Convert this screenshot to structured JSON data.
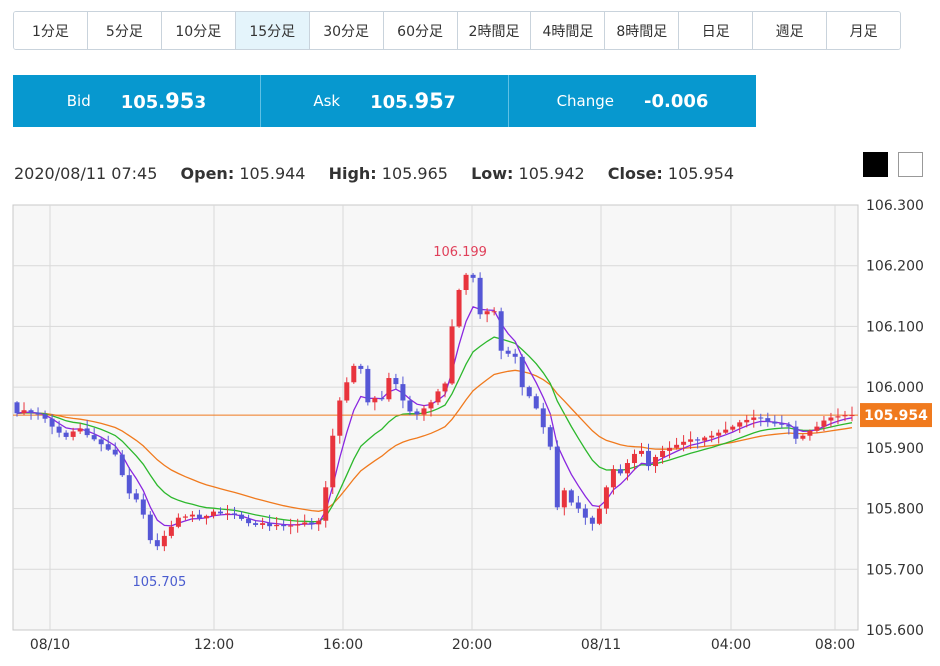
{
  "timeframes": [
    {
      "label": "1分足",
      "active": false
    },
    {
      "label": "5分足",
      "active": false
    },
    {
      "label": "10分足",
      "active": false
    },
    {
      "label": "15分足",
      "active": true
    },
    {
      "label": "30分足",
      "active": false
    },
    {
      "label": "60分足",
      "active": false
    },
    {
      "label": "2時間足",
      "active": false
    },
    {
      "label": "4時間足",
      "active": false
    },
    {
      "label": "8時間足",
      "active": false
    },
    {
      "label": "日足",
      "active": false
    },
    {
      "label": "週足",
      "active": false
    },
    {
      "label": "月足",
      "active": false
    }
  ],
  "quote": {
    "bid_label": "Bid",
    "bid_main": "105.",
    "bid_big": "95",
    "bid_small": "3",
    "ask_label": "Ask",
    "ask_main": "105.",
    "ask_big": "95",
    "ask_small": "7",
    "change_label": "Change",
    "change_value": "-0.006",
    "color": "#0798cf"
  },
  "ohlc": {
    "datetime": "2020/08/11 07:45",
    "open_label": "Open:",
    "open": "105.944",
    "high_label": "High:",
    "high": "105.965",
    "low_label": "Low:",
    "low": "105.942",
    "close_label": "Close:",
    "close": "105.954"
  },
  "theme_buttons": [
    "dark",
    "light"
  ],
  "chart_data": {
    "type": "candlestick",
    "ylim": [
      105.6,
      106.3
    ],
    "yticks": [
      "106.300",
      "106.200",
      "106.100",
      "106.000",
      "105.900",
      "105.800",
      "105.700",
      "105.600"
    ],
    "xticks": [
      "08/10",
      "12:00",
      "16:00",
      "20:00",
      "08/11",
      "04:00",
      "08:00"
    ],
    "current_price": 105.954,
    "current_price_label": "105.954",
    "max_label": "106.199",
    "min_label": "105.705",
    "colors": {
      "up": "#e8343d",
      "down": "#5557d6",
      "ma_short": "#8a27e0",
      "ma_mid": "#2db82d",
      "ma_long": "#f07a1e",
      "price_line": "#f07a1e"
    },
    "closes": [
      105.957,
      105.962,
      105.958,
      105.955,
      105.948,
      105.935,
      105.925,
      105.918,
      105.927,
      105.932,
      105.921,
      105.914,
      105.906,
      105.897,
      105.889,
      105.855,
      105.825,
      105.815,
      105.79,
      105.748,
      105.738,
      105.755,
      105.77,
      105.785,
      105.787,
      105.79,
      105.784,
      105.788,
      105.795,
      105.792,
      105.792,
      105.79,
      105.783,
      105.776,
      105.773,
      105.776,
      105.771,
      105.773,
      105.771,
      105.772,
      105.774,
      105.777,
      105.774,
      105.78,
      105.835,
      105.92,
      105.978,
      106.008,
      106.035,
      106.03,
      105.975,
      105.982,
      105.98,
      106.015,
      106.005,
      105.978,
      105.96,
      105.955,
      105.965,
      105.975,
      105.993,
      106.006,
      106.1,
      106.16,
      106.185,
      106.18,
      106.12,
      106.125,
      106.125,
      106.06,
      106.055,
      106.05,
      106.0,
      105.985,
      105.965,
      105.934,
      105.902,
      105.802,
      105.83,
      105.81,
      105.8,
      105.785,
      105.775,
      105.8,
      105.835,
      105.865,
      105.858,
      105.875,
      105.89,
      105.895,
      105.87,
      105.885,
      105.895,
      105.9,
      105.905,
      105.91,
      105.914,
      105.912,
      105.917,
      105.92,
      105.925,
      105.93,
      105.935,
      105.942,
      105.946,
      105.95,
      105.949,
      105.943,
      105.94,
      105.938,
      105.935,
      105.915,
      105.92,
      105.928,
      105.935,
      105.945,
      105.95,
      105.952,
      105.954,
      105.954
    ]
  }
}
